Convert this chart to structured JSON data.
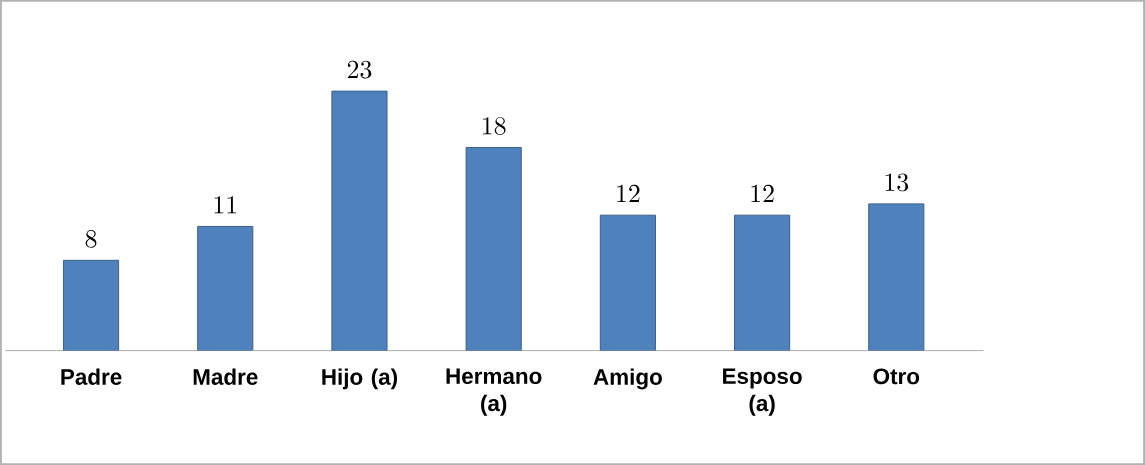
{
  "chart_data": {
    "type": "bar",
    "categories": [
      "Padre",
      "Madre",
      "Hijo (a)",
      "Hermano (a)",
      "Amigo",
      "Esposo (a)",
      "Otro"
    ],
    "values": [
      8,
      11,
      23,
      18,
      12,
      12,
      13
    ],
    "color": "#4f81bd",
    "data_labels": true
  }
}
